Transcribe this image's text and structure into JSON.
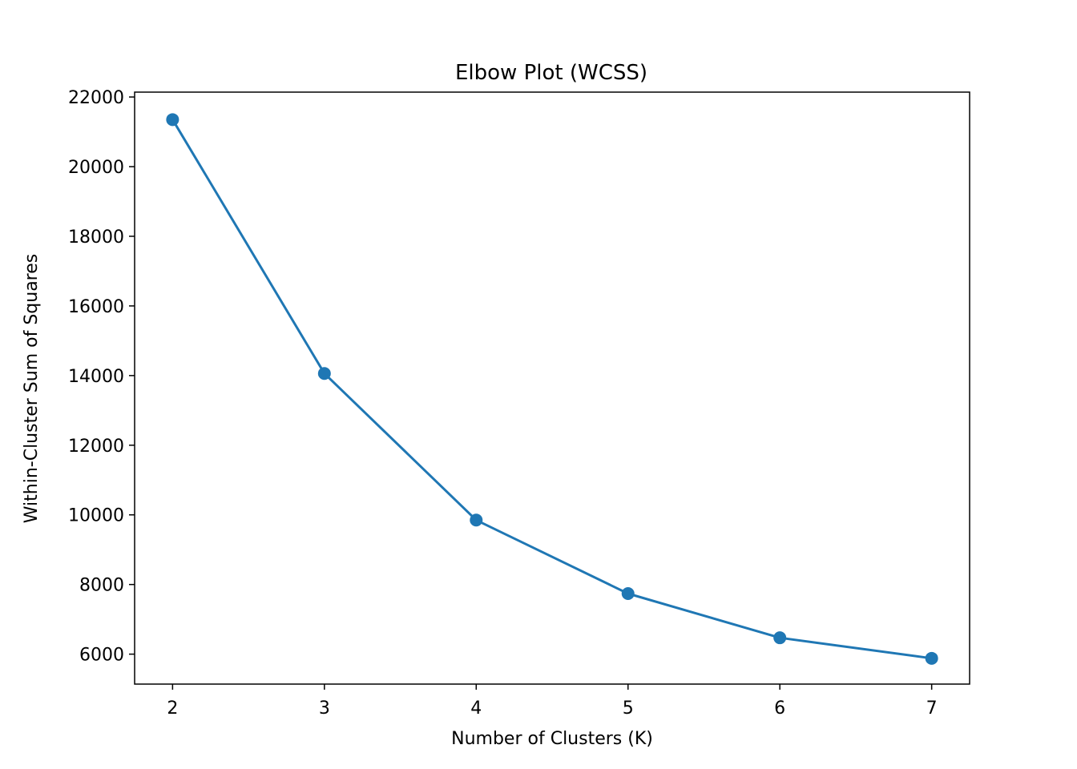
{
  "chart_data": {
    "type": "line",
    "title": "Elbow Plot (WCSS)",
    "xlabel": "Number of Clusters (K)",
    "ylabel": "Within-Cluster Sum of Squares",
    "x": [
      2,
      3,
      4,
      5,
      6,
      7
    ],
    "series": [
      {
        "values": [
          21350,
          14060,
          9850,
          7740,
          6470,
          5880
        ],
        "color": "#1f77b4",
        "marker": "circle"
      }
    ],
    "xticks": [
      "2",
      "3",
      "4",
      "5",
      "6",
      "7"
    ],
    "yticks": [
      "6000",
      "8000",
      "10000",
      "12000",
      "14000",
      "16000",
      "18000",
      "20000",
      "22000"
    ],
    "xlim": [
      1.75,
      7.25
    ],
    "ylim": [
      5140,
      22140
    ],
    "grid": false,
    "legend": "none"
  }
}
